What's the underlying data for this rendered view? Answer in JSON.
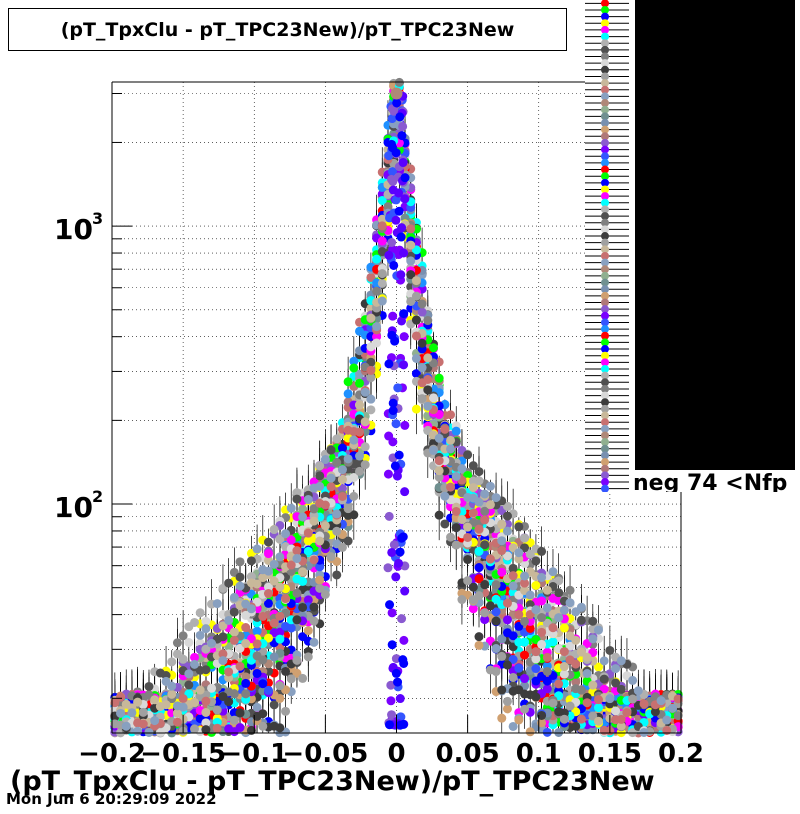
{
  "chart_data": {
    "type": "scatter",
    "title": "(pT_TpxClu - pT_TPC23New)/pT_TPC23New",
    "xlabel": "(pT_TpxClu - pT_TPC23New)/pT_TPC23New",
    "ylabel": "",
    "xlim": [
      -0.2,
      0.2
    ],
    "ylim": [
      15,
      3300
    ],
    "yscale": "log",
    "grid": true,
    "x_tick_labels": [
      "−0.2",
      "−0.15",
      "−0.1",
      "−0.05",
      "0",
      "0.05",
      "0.1",
      "0.15",
      "0.2"
    ],
    "x_ticks": [
      -0.2,
      -0.15,
      -0.1,
      -0.05,
      0,
      0.05,
      0.1,
      0.15,
      0.2
    ],
    "y_tick_labels": [
      {
        "base": "10",
        "exp": "2",
        "value": 100
      },
      {
        "base": "10",
        "exp": "3",
        "value": 1000
      }
    ],
    "peak_center": 0.0,
    "peak_height": 3000,
    "background_level": 16,
    "series_count": 74,
    "visible_legend_fragment": "neg 74 <Nfp",
    "legend_placement": "top-right",
    "palette": [
      "#ff0000",
      "#00ff00",
      "#0000ff",
      "#ffff00",
      "#ff00ff",
      "#00ffff",
      "#b0b0b0",
      "#505050",
      "#808080",
      "#d8d8d8",
      "#3c3c3c",
      "#a0a0a0",
      "#c8b89a",
      "#c87070",
      "#88a0c0",
      "#b08878",
      "#90b090",
      "#709090",
      "#7890b0",
      "#d0a070",
      "#b07878",
      "#8a5ad0",
      "#7a00ff",
      "#3355ff",
      "#1e90ff"
    ]
  },
  "footer": {
    "datestamp": "Mon Jun  6 20:29:09 2022"
  }
}
